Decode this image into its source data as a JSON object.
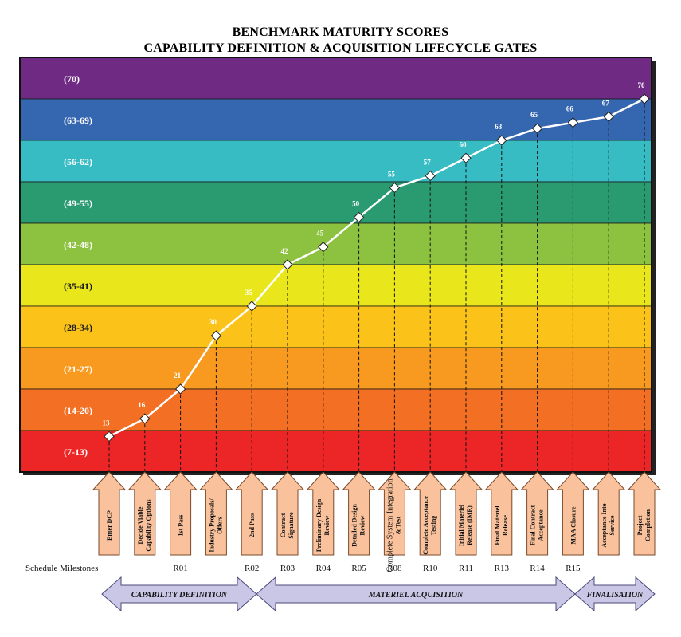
{
  "header": {
    "title_line1": "BENCHMARK MATURITY SCORES",
    "title_line2": "CAPABILITY DEFINITION & ACQUISITION LIFECYCLE GATES"
  },
  "chart_data": {
    "type": "line",
    "title": "BENCHMARK MATURITY SCORES CAPABILITY DEFINITION & ACQUISITION LIFECYCLE GATES",
    "ylim": [
      7,
      70
    ],
    "bands": [
      {
        "label": "(70)",
        "color": "#6f2a84"
      },
      {
        "label": "(63-69)",
        "color": "#3566b0"
      },
      {
        "label": "(56-62)",
        "color": "#38bcc4"
      },
      {
        "label": "(49-55)",
        "color": "#2a9a70"
      },
      {
        "label": "(42-48)",
        "color": "#8cc23f"
      },
      {
        "label": "(35-41)",
        "color": "#e9e61c"
      },
      {
        "label": "(28-34)",
        "color": "#fbc31a"
      },
      {
        "label": "(21-27)",
        "color": "#f79a1f"
      },
      {
        "label": "(14-20)",
        "color": "#f26f23"
      },
      {
        "label": "(7-13)",
        "color": "#ec2526"
      }
    ],
    "milestones": [
      {
        "gate": "Enter DCP",
        "score": 13,
        "schedule": ""
      },
      {
        "gate": "Decide Viable Capability Options",
        "score": 16,
        "schedule": ""
      },
      {
        "gate": "1st Pass",
        "score": 21,
        "schedule": "R01"
      },
      {
        "gate": "Industry Proposals/ Offers",
        "score": 30,
        "schedule": ""
      },
      {
        "gate": "2nd Pass",
        "score": 35,
        "schedule": "R02"
      },
      {
        "gate": "Contract Signature",
        "score": 42,
        "schedule": "R03"
      },
      {
        "gate": "Preliminary Design Review",
        "score": 45,
        "schedule": "R04"
      },
      {
        "gate": "Detailed Design Review",
        "score": 50,
        "schedule": "R05"
      },
      {
        "gate": "Complete System Integration & Test",
        "score": 55,
        "schedule": "R08"
      },
      {
        "gate": "Complete Acceptance Testing",
        "score": 57,
        "schedule": "R10"
      },
      {
        "gate": "Initial Materiel Release (IMR)",
        "score": 60,
        "schedule": "R11"
      },
      {
        "gate": "Final Materiel Release",
        "score": 63,
        "schedule": "R13"
      },
      {
        "gate": "Final Contract Acceptance",
        "score": 65,
        "schedule": "R14"
      },
      {
        "gate": "MAA Closure",
        "score": 66,
        "schedule": "R15"
      },
      {
        "gate": "Acceptance Into Service",
        "score": 67,
        "schedule": ""
      },
      {
        "gate": "Project Completion",
        "score": 70,
        "schedule": ""
      }
    ],
    "schedule_label": "Schedule  Milestones",
    "phases": [
      {
        "label": "CAPABILITY DEFINITION"
      },
      {
        "label": "MATERIEL ACQUISITION"
      },
      {
        "label": "FINALISATION"
      }
    ],
    "colors": {
      "line": "#ffffff",
      "gate_arrow_fill": "#f9c29c",
      "gate_arrow_stroke": "#7a4a2a",
      "phase_arrow_fill": "#c9c6e6",
      "phase_arrow_stroke": "#4a4a7a"
    }
  }
}
